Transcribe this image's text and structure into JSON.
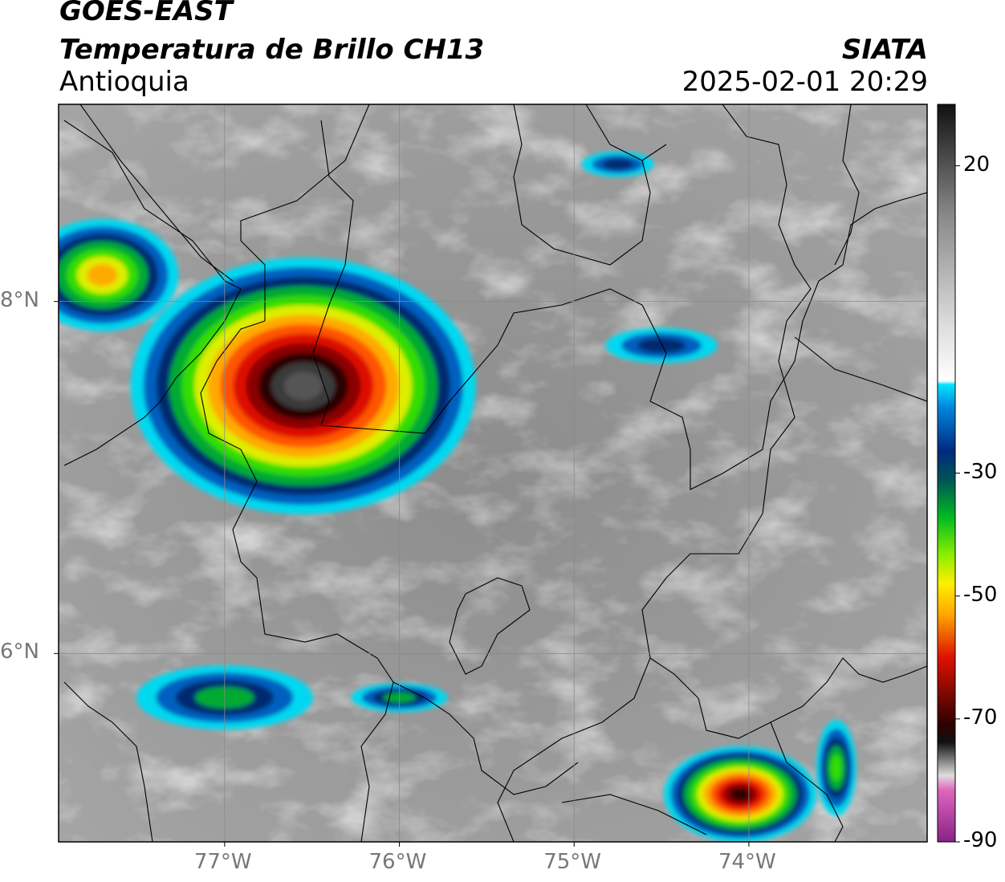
{
  "header": {
    "satellite": "GOES-EAST",
    "product": "Temperatura de Brillo CH13",
    "region": "Antioquia",
    "organization": "SIATA",
    "datetime": "2025-02-01 20:29"
  },
  "map": {
    "lon_range": [
      -77.95,
      -72.98
    ],
    "lat_range": [
      4.93,
      9.12
    ],
    "lon_ticks": [
      {
        "value": -77,
        "label": "77°W"
      },
      {
        "value": -76,
        "label": "76°W"
      },
      {
        "value": -75,
        "label": "75°W"
      },
      {
        "value": -74,
        "label": "74°W"
      }
    ],
    "lat_ticks": [
      {
        "value": 8,
        "label": "8°N"
      },
      {
        "value": 6,
        "label": "6°N"
      }
    ],
    "gridlines": true,
    "cloud_systems": [
      {
        "name": "main-storm-cell",
        "lon": -76.55,
        "lat": 7.52,
        "min_temp": -80
      },
      {
        "name": "northwest-coastal-cell",
        "lon": -77.7,
        "lat": 8.15,
        "min_temp": -55
      },
      {
        "name": "southeast-cell",
        "lon": -74.05,
        "lat": 5.2,
        "min_temp": -75
      },
      {
        "name": "east-line",
        "lon": -73.5,
        "lat": 5.35,
        "min_temp": -45
      },
      {
        "name": "north-small-cell",
        "lon": -74.75,
        "lat": 8.78,
        "min_temp": -35
      },
      {
        "name": "central-east-cell",
        "lon": -74.5,
        "lat": 7.75,
        "min_temp": -35
      },
      {
        "name": "southwest-band",
        "lon": -77.0,
        "lat": 5.75,
        "min_temp": -40
      },
      {
        "name": "south-central-cell",
        "lon": -76.0,
        "lat": 5.75,
        "min_temp": -40
      }
    ]
  },
  "colorbar": {
    "min": -90,
    "max": 30,
    "tick_labels": [
      {
        "value": 20,
        "label": "20"
      },
      {
        "value": -30,
        "label": "-30"
      },
      {
        "value": -50,
        "label": "-50"
      },
      {
        "value": -70,
        "label": "-70"
      },
      {
        "value": -90,
        "label": "-90"
      }
    ],
    "colors": {
      "warm": "#2a2a2a",
      "neutral": "#ffffff",
      "cyan": "#00e5ff",
      "blue": "#002a80",
      "green": "#00cc00",
      "yellow": "#ffee00",
      "orange": "#ff8800",
      "red": "#cc0000",
      "darkred": "#200000",
      "pink": "#dd66bb",
      "purple": "#882288"
    }
  }
}
